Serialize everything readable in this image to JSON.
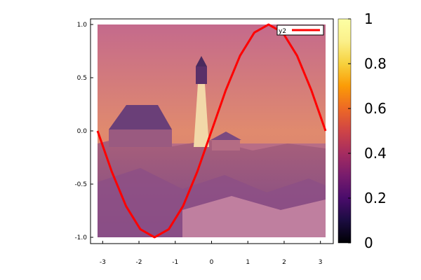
{
  "chart_data": {
    "type": "line",
    "background": "heatmap image of a lighthouse on a rocky coast (inferno colormap)",
    "xlim": [
      -3.1416,
      3.1416
    ],
    "ylim": [
      -1.0,
      1.0
    ],
    "x_ticks": [
      "-3",
      "-2",
      "-1",
      "0",
      "1",
      "2",
      "3"
    ],
    "y_ticks": [
      "-1.0",
      "-0.5",
      "0.0",
      "0.5",
      "1.0"
    ],
    "series": [
      {
        "name": "y2",
        "color": "#ff0000",
        "x": [
          -3.1416,
          -2.7489,
          -2.3562,
          -1.9635,
          -1.5708,
          -1.1781,
          -0.7854,
          -0.3927,
          0.0,
          0.3927,
          0.7854,
          1.1781,
          1.5708,
          1.9635,
          2.3562,
          2.7489,
          3.1416
        ],
        "y": [
          0.0,
          -0.383,
          -0.707,
          -0.924,
          -1.0,
          -0.924,
          -0.707,
          -0.383,
          0.0,
          0.383,
          0.707,
          0.924,
          1.0,
          0.924,
          0.707,
          0.383,
          0.0
        ]
      }
    ],
    "legend": {
      "entries": [
        "y2"
      ],
      "placement": "top-right"
    },
    "colorbar": {
      "range": [
        0,
        1
      ],
      "ticks": [
        "0",
        "0.2",
        "0.4",
        "0.6",
        "0.8",
        "1"
      ]
    }
  }
}
